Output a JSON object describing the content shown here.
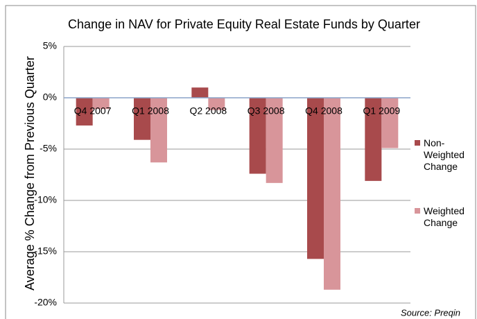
{
  "chart_data": {
    "type": "bar",
    "title": "Change in NAV for Private Equity Real Estate Funds by Quarter",
    "y_label": "Average % Change from Previous Quarter",
    "source": "Source: Preqin",
    "categories": [
      "Q4 2007",
      "Q1 2008",
      "Q2 2008",
      "Q3 2008",
      "Q4 2008",
      "Q1 2009"
    ],
    "series": [
      {
        "name": "Non-Weighted Change",
        "color": "#a84a4c",
        "values": [
          -2.7,
          -4.1,
          1.0,
          -7.4,
          -15.7,
          -8.1
        ]
      },
      {
        "name": "Weighted Change",
        "color": "#d8959a",
        "values": [
          -1.1,
          -6.3,
          -1.2,
          -8.3,
          -18.7,
          -4.9
        ]
      }
    ],
    "ylim": [
      -20,
      5
    ],
    "yticks": [
      {
        "value": -20,
        "label": "-20%"
      },
      {
        "value": -15,
        "label": "-15%"
      },
      {
        "value": -10,
        "label": "-10%"
      },
      {
        "value": -5,
        "label": "-5%"
      },
      {
        "value": 0,
        "label": "0%"
      },
      {
        "value": 5,
        "label": "5%"
      }
    ],
    "grid": true,
    "legend": "right"
  }
}
